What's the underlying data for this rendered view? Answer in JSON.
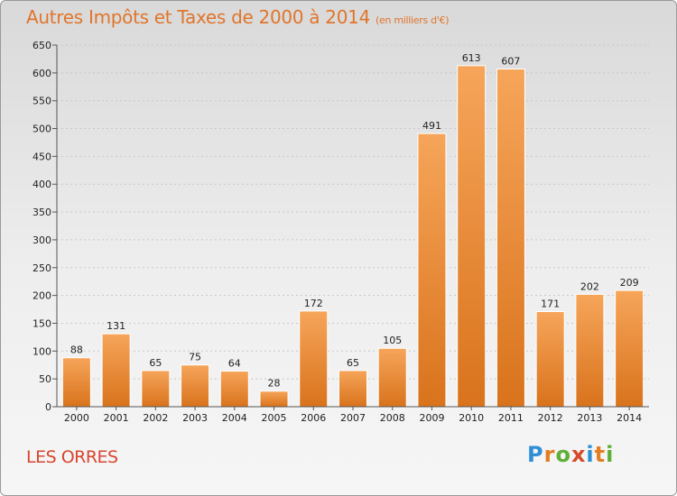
{
  "header": {
    "title": "Autres Impôts et Taxes de 2000 à 2014",
    "unit": "(en milliers d'€)"
  },
  "footer": {
    "place": "LES ORRES",
    "logo": "Proxiti"
  },
  "colors": {
    "bar_light": "#f6a55a",
    "bar_dark": "#d9731c",
    "title": "#e0752b",
    "place": "#d8462f"
  },
  "chart_data": {
    "type": "bar",
    "title": "Autres Impôts et Taxes de 2000 à 2014",
    "subtitle": "(en milliers d'€)",
    "xlabel": "",
    "ylabel": "",
    "categories": [
      "2000",
      "2001",
      "2002",
      "2003",
      "2004",
      "2005",
      "2006",
      "2007",
      "2008",
      "2009",
      "2010",
      "2011",
      "2012",
      "2013",
      "2014"
    ],
    "values": [
      88,
      131,
      65,
      75,
      64,
      28,
      172,
      65,
      105,
      491,
      613,
      607,
      171,
      202,
      209
    ],
    "ylim": [
      0,
      650
    ],
    "yticks": [
      0,
      50,
      100,
      150,
      200,
      250,
      300,
      350,
      400,
      450,
      500,
      550,
      600,
      650
    ],
    "grid": true,
    "legend": "none"
  }
}
